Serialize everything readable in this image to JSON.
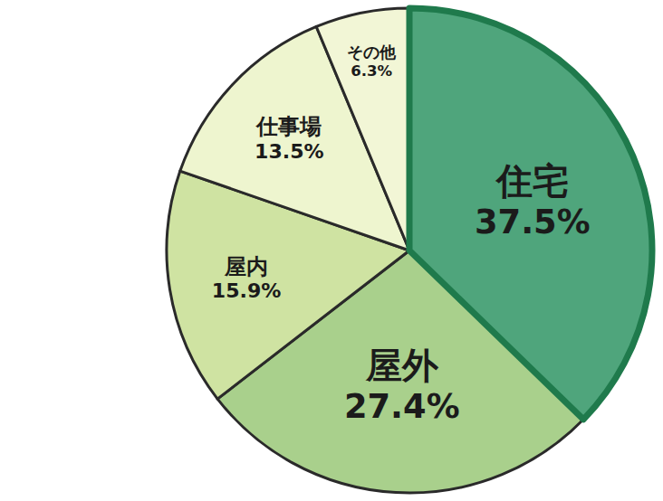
{
  "chart_data": {
    "type": "pie",
    "categories": [
      "住宅",
      "屋外",
      "屋内",
      "仕事場",
      "その他"
    ],
    "values": [
      37.5,
      27.4,
      15.9,
      13.5,
      6.3
    ],
    "value_labels": [
      "37.5%",
      "27.4%",
      "15.9%",
      "13.5%",
      "6.3%"
    ],
    "colors": [
      "#4fa57c",
      "#a9d08c",
      "#cfe3a2",
      "#eef5cf",
      "#f2f6d6"
    ],
    "data_labels": true
  }
}
